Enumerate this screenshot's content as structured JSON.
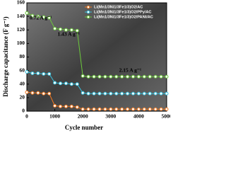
{
  "chart_data": {
    "type": "line",
    "xlabel": "Cycle number",
    "ylabel": "Discharge capacitance (F g⁻¹)",
    "x": [
      0,
      200,
      400,
      600,
      800,
      1000,
      1200,
      1400,
      1600,
      1800,
      2000,
      2200,
      2400,
      2600,
      2800,
      3000,
      3200,
      3400,
      3600,
      3800,
      4000,
      4200,
      4400,
      4600,
      4800,
      5000
    ],
    "series": [
      {
        "name": "Li(Mn1/3Ni1/3Fe1/3)O2/AC",
        "color": "#f07820",
        "values": [
          28,
          27,
          27,
          26,
          26,
          8,
          7,
          7,
          7,
          6,
          3,
          3,
          3,
          3,
          3,
          3,
          3,
          3,
          3,
          3,
          3,
          3,
          3,
          3,
          3,
          3
        ]
      },
      {
        "name": "Li(Mn1/3Ni1/3Fe1/3)O2/PPy/AC",
        "color": "#38c0dc",
        "values": [
          58,
          56,
          56,
          55,
          55,
          42,
          41,
          41,
          40,
          40,
          27,
          26,
          26,
          26,
          26,
          26,
          26,
          26,
          26,
          26,
          26,
          26,
          26,
          26,
          26,
          26
        ]
      },
      {
        "name": "Li(Mn1/3Ni1/3Fe1/3)O2/PANI/AC",
        "color": "#6cc83c",
        "values": [
          145,
          141,
          140,
          139,
          138,
          122,
          121,
          120,
          120,
          119,
          52,
          51,
          51,
          51,
          51,
          51,
          51,
          51,
          51,
          51,
          51,
          51,
          51,
          51,
          51,
          51
        ]
      }
    ],
    "annotations": [
      "0.72 A g⁻¹",
      "1.43 A g⁻¹",
      "2.15 A g⁻¹"
    ],
    "xlim": [
      0,
      5000
    ],
    "xticks": [
      0,
      1000,
      2000,
      3000,
      4000,
      5000
    ],
    "ylim": [
      0,
      160
    ],
    "yticks": [
      0,
      20,
      40,
      60,
      80,
      100,
      120,
      140,
      160
    ],
    "legend": "upper right"
  }
}
